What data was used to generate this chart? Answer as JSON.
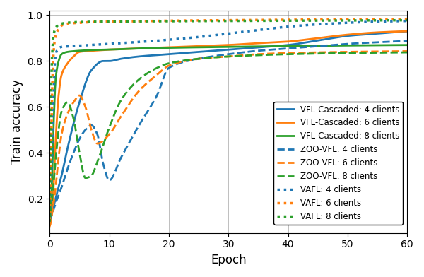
{
  "title": "",
  "xlabel": "Epoch",
  "ylabel": "Train accuracy",
  "xlim": [
    0,
    60
  ],
  "ylim": [
    0.05,
    1.02
  ],
  "colors": {
    "blue": "#1f77b4",
    "orange": "#ff7f0e",
    "green": "#2ca02c"
  },
  "legend_entries": [
    "VFL-Cascaded: 4 clients",
    "VFL-Cascaded: 6 clients",
    "VFL-Cascaded: 8 clients",
    "ZOO-VFL: 4 clients",
    "ZOO-VFL: 6 clients",
    "ZOO-VFL: 8 clients",
    "VAFL: 4 clients",
    "VAFL: 6 clients",
    "VAFL: 8 clients"
  ],
  "yticks": [
    0.2,
    0.4,
    0.6,
    0.8,
    1.0
  ],
  "xticks": [
    0,
    10,
    20,
    30,
    40,
    50,
    60
  ]
}
